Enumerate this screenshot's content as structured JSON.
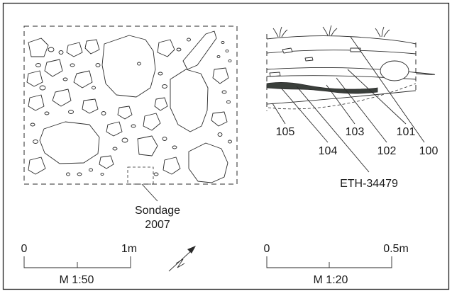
{
  "plan": {
    "sondage_label_line1": "Sondage",
    "sondage_label_line2": "2007"
  },
  "scale_plan": {
    "start_label": "0",
    "end_label": "1m",
    "ratio_label": "M 1:50"
  },
  "scale_section": {
    "start_label": "0",
    "end_label": "0.5m",
    "ratio_label": "M 1:20"
  },
  "section": {
    "layers": [
      "105",
      "104",
      "103",
      "102",
      "101",
      "100"
    ],
    "sample_label": "ETH-34479",
    "sample_color": "#b86a2c",
    "charcoal_color": "#3a3f3b"
  },
  "north_arrow": "north-arrow-icon",
  "colors": {
    "frame": "#1f1f1f",
    "ink": "#2a2a2a"
  }
}
